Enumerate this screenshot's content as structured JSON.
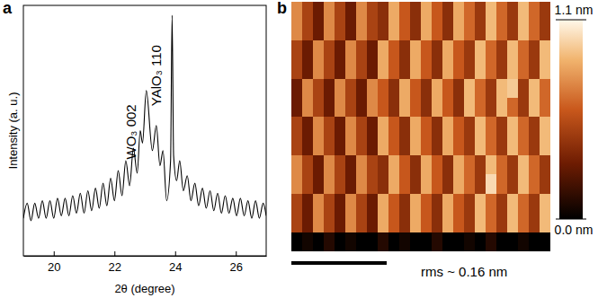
{
  "chart_data": [
    {
      "type": "line",
      "title": "a",
      "xlabel": "2θ (degree)",
      "ylabel": "Intensity (a. u.)",
      "x": [
        19.0,
        19.125,
        19.25,
        19.375,
        19.5,
        19.625,
        19.75,
        19.875,
        20.0,
        20.125,
        20.25,
        20.375,
        20.5,
        20.625,
        20.75,
        20.875,
        21.0,
        21.125,
        21.25,
        21.375,
        21.5,
        21.625,
        21.75,
        21.875,
        22.0,
        22.125,
        22.25,
        22.375,
        22.5,
        22.625,
        22.75,
        22.85,
        22.925,
        23.05,
        23.25,
        23.38,
        23.5,
        23.6,
        23.72,
        23.85,
        23.9,
        23.95,
        24.05,
        24.15,
        24.27,
        24.4,
        24.52,
        24.65,
        24.775,
        24.9,
        25.025,
        25.15,
        25.275,
        25.4,
        25.525,
        25.65,
        25.775,
        25.9,
        26.025,
        26.15,
        26.275,
        26.4,
        26.525,
        26.65,
        26.775,
        26.9,
        27.0
      ],
      "values": [
        15,
        21,
        14,
        21,
        15,
        22,
        15,
        22,
        15,
        23,
        16,
        23,
        16,
        24,
        17,
        25,
        17,
        26,
        18,
        27,
        19,
        29,
        20,
        31,
        22,
        34,
        24,
        38,
        28,
        43,
        33,
        50,
        45,
        66,
        42,
        52,
        36,
        42,
        22,
        38,
        96,
        40,
        30,
        38,
        26,
        32,
        22,
        29,
        20,
        27,
        19,
        26,
        18,
        25,
        17,
        24,
        17,
        23,
        16,
        23,
        16,
        22,
        15,
        22,
        15,
        21,
        16
      ],
      "color": "#000000",
      "xlim": [
        19,
        27
      ],
      "xticks": [
        20,
        22,
        24,
        26
      ],
      "ylim": [
        0,
        100
      ],
      "tick_labels": "x",
      "annotations": [
        {
          "text": "WO₃ 002",
          "x": 23.05
        },
        {
          "text": "YAlO₃ 110",
          "x": 23.9
        }
      ]
    },
    {
      "type": "heatmap",
      "title": "b",
      "cells": [
        [
          0.75,
          0.5,
          0.3,
          0.75,
          0.5,
          0.3,
          0.75,
          0.5,
          0.4,
          0.85,
          0.6,
          0.4,
          0.85,
          0.6,
          0.4,
          0.85,
          0.65,
          0.45,
          0.9,
          0.65,
          0.45,
          0.9,
          0.65,
          0.45
        ],
        [
          0.75,
          0.5,
          0.3,
          0.75,
          0.5,
          0.3,
          0.75,
          0.5,
          0.4,
          0.85,
          0.6,
          0.4,
          0.85,
          0.6,
          0.4,
          0.85,
          0.65,
          0.45,
          0.9,
          0.65,
          0.45,
          0.9,
          0.65,
          0.45
        ],
        [
          0.5,
          0.3,
          0.75,
          0.5,
          0.3,
          0.75,
          0.5,
          0.3,
          0.85,
          0.6,
          0.4,
          0.85,
          0.6,
          0.4,
          0.85,
          0.6,
          0.45,
          0.9,
          0.65,
          0.45,
          0.9,
          0.65,
          0.45,
          0.9
        ],
        [
          0.5,
          0.3,
          0.75,
          0.5,
          0.3,
          0.75,
          0.5,
          0.3,
          0.85,
          0.6,
          0.4,
          0.85,
          0.6,
          0.4,
          0.85,
          0.6,
          0.45,
          0.9,
          0.65,
          0.45,
          0.9,
          0.65,
          0.45,
          0.9
        ],
        [
          0.3,
          0.75,
          0.5,
          0.3,
          0.75,
          0.5,
          0.3,
          0.75,
          0.6,
          0.4,
          0.85,
          0.6,
          0.4,
          0.85,
          0.6,
          0.4,
          0.9,
          0.65,
          0.45,
          0.9,
          0.95,
          0.45,
          0.9,
          0.65
        ],
        [
          0.3,
          0.75,
          0.5,
          0.3,
          0.75,
          0.5,
          0.3,
          0.75,
          0.6,
          0.4,
          0.85,
          0.6,
          0.4,
          0.85,
          0.6,
          0.4,
          0.9,
          0.65,
          0.45,
          0.9,
          0.65,
          0.45,
          0.9,
          0.65
        ],
        [
          0.5,
          0.3,
          0.75,
          0.5,
          0.3,
          0.75,
          0.5,
          0.3,
          0.85,
          0.6,
          0.4,
          0.85,
          0.6,
          0.4,
          0.85,
          0.6,
          0.45,
          0.9,
          0.65,
          0.45,
          0.9,
          0.65,
          0.45,
          0.9
        ],
        [
          0.5,
          0.3,
          0.75,
          0.5,
          0.3,
          0.75,
          0.5,
          0.3,
          0.85,
          0.6,
          0.4,
          0.85,
          0.6,
          0.4,
          0.85,
          0.6,
          0.45,
          0.9,
          0.65,
          0.45,
          0.9,
          0.65,
          0.45,
          0.9
        ],
        [
          0.75,
          0.5,
          0.3,
          0.75,
          0.5,
          0.3,
          0.75,
          0.5,
          0.4,
          0.85,
          0.6,
          0.4,
          0.85,
          0.6,
          0.4,
          0.85,
          0.65,
          0.45,
          0.9,
          0.65,
          0.45,
          0.9,
          0.65,
          0.45
        ],
        [
          0.75,
          0.5,
          0.3,
          0.75,
          0.5,
          0.3,
          0.75,
          0.5,
          0.4,
          0.85,
          0.6,
          0.4,
          0.85,
          0.6,
          0.4,
          0.85,
          0.65,
          0.45,
          1.0,
          0.65,
          0.45,
          0.9,
          0.65,
          0.45
        ],
        [
          0.5,
          0.3,
          0.75,
          0.5,
          0.3,
          0.75,
          0.5,
          0.3,
          0.85,
          0.6,
          0.4,
          0.85,
          0.6,
          0.4,
          0.85,
          0.6,
          0.45,
          0.9,
          0.65,
          0.45,
          0.9,
          0.65,
          0.45,
          0.9
        ],
        [
          0.5,
          0.3,
          0.75,
          0.5,
          0.3,
          0.75,
          0.5,
          0.3,
          0.85,
          0.6,
          0.4,
          0.85,
          0.6,
          0.4,
          0.85,
          0.6,
          0.45,
          0.9,
          0.65,
          0.45,
          0.9,
          0.65,
          0.45,
          0.9
        ],
        [
          0.0,
          0.05,
          0.0,
          0.1,
          0.0,
          0.05,
          0.0,
          0.0,
          0.1,
          0.0,
          0.05,
          0.0,
          0.0,
          0.1,
          0.0,
          0.0,
          0.05,
          0.0,
          0.1,
          0.0,
          0.0,
          0.05,
          0.0,
          0.0
        ]
      ],
      "colorbar": {
        "range": [
          0,
          1.1
        ],
        "ticks": [
          {
            "value": 0,
            "label": "0.0 nm"
          },
          {
            "value": 1.1,
            "label": "1.1 nm"
          }
        ]
      },
      "tick_labels": false,
      "annotations": [
        {
          "text": "rms ~ 0.16 nm"
        }
      ]
    }
  ]
}
